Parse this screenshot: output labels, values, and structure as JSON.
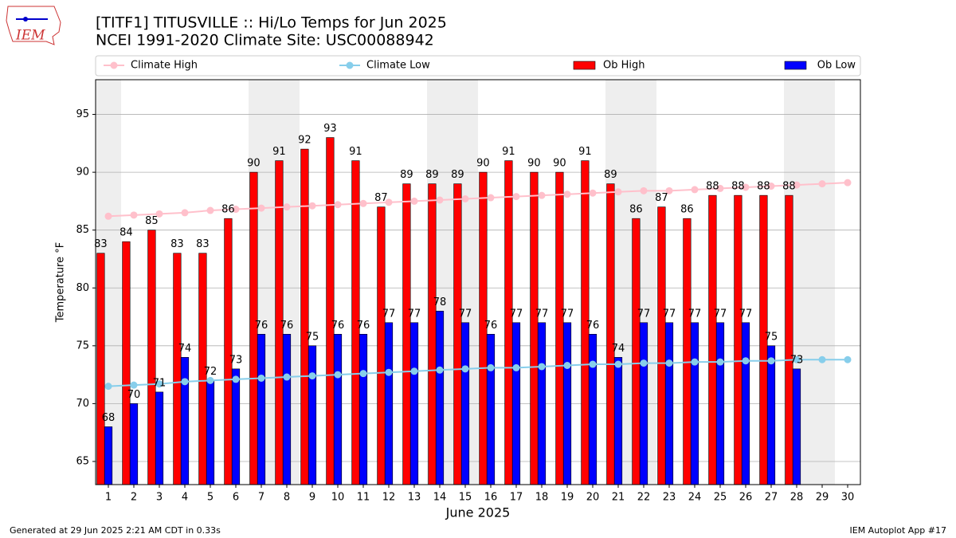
{
  "chart_data": {
    "type": "bar",
    "title": "[TITF1] TITUSVILLE :: Hi/Lo Temps for Jun 2025",
    "subtitle": "NCEI 1991-2020 Climate Site: USC00088942",
    "x_label": "June 2025",
    "y_label": "Temperature °F",
    "x": [
      1,
      2,
      3,
      4,
      5,
      6,
      7,
      8,
      9,
      10,
      11,
      12,
      13,
      14,
      15,
      16,
      17,
      18,
      19,
      20,
      21,
      22,
      23,
      24,
      25,
      26,
      27,
      28,
      29,
      30
    ],
    "xlim": [
      0.5,
      30.5
    ],
    "xticks": [
      1,
      2,
      3,
      4,
      5,
      6,
      7,
      8,
      9,
      10,
      11,
      12,
      13,
      14,
      15,
      16,
      17,
      18,
      19,
      20,
      21,
      22,
      23,
      24,
      25,
      26,
      27,
      28,
      29,
      30
    ],
    "ylim": [
      63,
      98
    ],
    "yticks": [
      65,
      70,
      75,
      80,
      85,
      90,
      95
    ],
    "grid": true,
    "weekend_shading": [
      [
        0.5,
        1.5
      ],
      [
        6.5,
        8.5
      ],
      [
        13.5,
        15.5
      ],
      [
        20.5,
        22.5
      ],
      [
        27.5,
        29.5
      ]
    ],
    "series": [
      {
        "name": "Climate High",
        "type": "line",
        "color": "#ffc0cb",
        "values": [
          86.2,
          86.3,
          86.4,
          86.5,
          86.7,
          86.8,
          86.9,
          87.0,
          87.1,
          87.2,
          87.3,
          87.4,
          87.5,
          87.6,
          87.7,
          87.8,
          87.9,
          88.0,
          88.1,
          88.2,
          88.3,
          88.4,
          88.4,
          88.5,
          88.6,
          88.7,
          88.8,
          88.9,
          89.0,
          89.1
        ]
      },
      {
        "name": "Climate Low",
        "type": "line",
        "color": "#87ceeb",
        "values": [
          71.5,
          71.6,
          71.7,
          71.9,
          72.0,
          72.1,
          72.2,
          72.3,
          72.4,
          72.5,
          72.6,
          72.7,
          72.8,
          72.9,
          73.0,
          73.1,
          73.1,
          73.2,
          73.3,
          73.4,
          73.4,
          73.5,
          73.5,
          73.6,
          73.6,
          73.7,
          73.7,
          73.8,
          73.8,
          73.8
        ]
      },
      {
        "name": "Ob High",
        "type": "bar",
        "color": "#ff0000",
        "values": [
          83,
          84,
          85,
          83,
          83,
          86,
          90,
          91,
          92,
          93,
          91,
          87,
          89,
          89,
          89,
          90,
          91,
          90,
          90,
          91,
          89,
          86,
          87,
          86,
          88,
          88,
          88,
          88,
          null,
          null
        ]
      },
      {
        "name": "Ob Low",
        "type": "bar",
        "color": "#0000ff",
        "values": [
          68,
          70,
          71,
          74,
          72,
          73,
          76,
          76,
          75,
          76,
          76,
          77,
          77,
          78,
          77,
          76,
          77,
          77,
          77,
          76,
          74,
          77,
          77,
          77,
          77,
          77,
          75,
          73,
          null,
          null
        ]
      }
    ]
  },
  "logo_text": "IEM",
  "footer_left": "Generated at 29 Jun 2025 2:21 AM CDT in 0.33s",
  "footer_right": "IEM Autoplot App #17"
}
